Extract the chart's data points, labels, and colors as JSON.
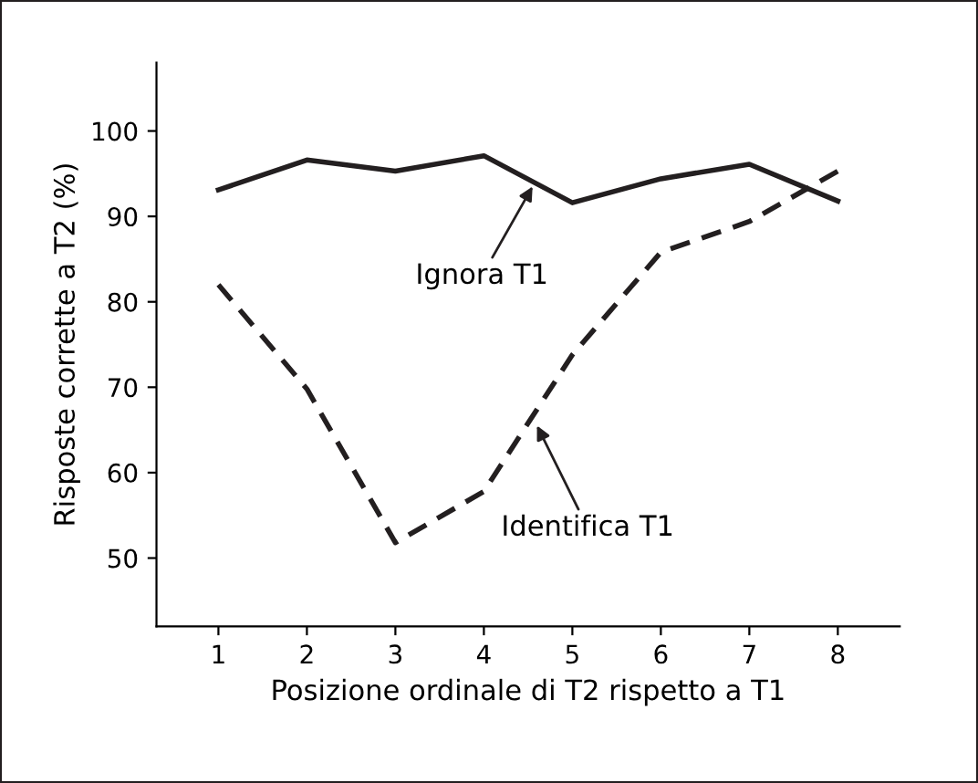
{
  "chart_data": {
    "type": "line",
    "xlabel": "Posizione ordinale di T2 rispetto a T1",
    "ylabel": "Risposte corrette a T2 (%)",
    "x": [
      1,
      2,
      3,
      4,
      5,
      6,
      7,
      8
    ],
    "series": [
      {
        "color": "#231f20",
        "line_style": "solid",
        "values": [
          93.1,
          96.6,
          95.3,
          97.1,
          91.6,
          94.4,
          96.1,
          91.8
        ]
      },
      {
        "color": "#231f20",
        "line_style": "dashed",
        "values": [
          82.0,
          69.8,
          51.8,
          57.8,
          73.8,
          85.8,
          89.4,
          95.3
        ]
      }
    ],
    "xlim": [
      0.3,
      8.7
    ],
    "ylim": [
      42,
      108
    ],
    "xticks": [
      1,
      2,
      3,
      4,
      5,
      6,
      7,
      8
    ],
    "yticks": [
      50,
      60,
      70,
      80,
      90,
      100
    ],
    "grid": false,
    "legend": false,
    "marker": "none",
    "annotations": [
      {
        "text": "Ignora T1",
        "x": 4.55,
        "y": 93.5
      },
      {
        "text": "Identifica T1",
        "x": 4.6,
        "y": 65.5
      }
    ]
  }
}
